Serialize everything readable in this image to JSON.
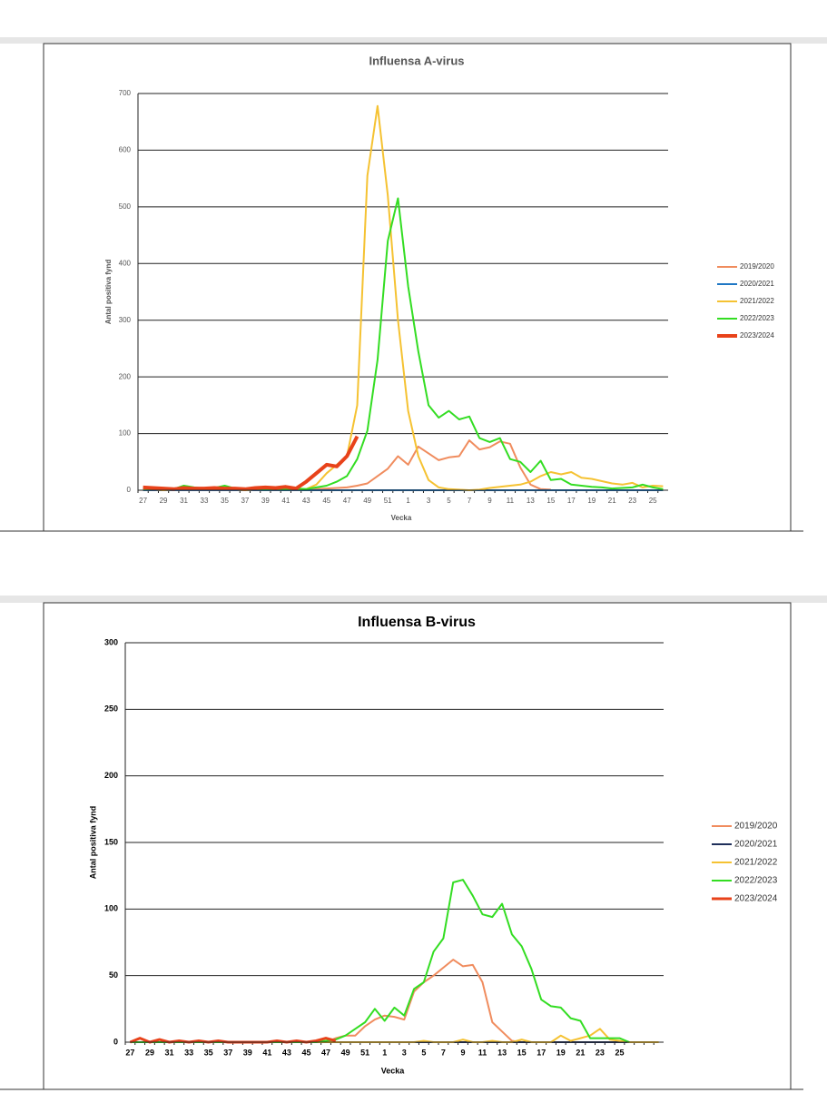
{
  "chart_data": [
    {
      "type": "line",
      "title": "Influensa A-virus",
      "ylabel": "Antal positiva fynd",
      "xlabel": "Vecka",
      "categories": [
        "27",
        null,
        "29",
        null,
        "31",
        null,
        "33",
        null,
        "35",
        null,
        "37",
        null,
        "39",
        null,
        "41",
        null,
        "43",
        null,
        "45",
        null,
        "47",
        null,
        "49",
        null,
        "51",
        null,
        "1",
        null,
        "3",
        null,
        "5",
        null,
        "7",
        null,
        "9",
        null,
        "11",
        null,
        "13",
        null,
        "15",
        null,
        "17",
        null,
        "19",
        null,
        "21",
        null,
        "23",
        null,
        "25",
        null
      ],
      "ylim": [
        0,
        700
      ],
      "yticks": [
        0,
        100,
        200,
        300,
        400,
        500,
        600,
        700
      ],
      "grid": true,
      "legend": "right",
      "series": [
        {
          "name": "2019/2020",
          "color": "#f08c5e",
          "linewidth": 2,
          "values": [
            0,
            0,
            0,
            0,
            0,
            0,
            0,
            0,
            0,
            0,
            0,
            0,
            0,
            0,
            0,
            0,
            1,
            2,
            3,
            4,
            5,
            8,
            12,
            25,
            38,
            60,
            45,
            77,
            65,
            53,
            58,
            60,
            88,
            72,
            76,
            86,
            82,
            40,
            10,
            2,
            1,
            null,
            null,
            null,
            null,
            null,
            null,
            null,
            null,
            null,
            null,
            null
          ]
        },
        {
          "name": "2020/2021",
          "color": "#1f77c4",
          "linewidth": 2,
          "values": [
            0,
            0,
            0,
            0,
            0,
            0,
            0,
            0,
            0,
            0,
            0,
            0,
            0,
            0,
            0,
            0,
            0,
            0,
            0,
            0,
            0,
            0,
            0,
            0,
            0,
            0,
            0,
            0,
            0,
            0,
            0,
            0,
            0,
            0,
            0,
            0,
            0,
            0,
            0,
            0,
            0,
            0,
            0,
            0,
            0,
            0,
            0,
            0,
            0,
            0,
            0,
            0
          ]
        },
        {
          "name": "2021/2022",
          "color": "#f5c232",
          "linewidth": 2,
          "values": [
            1,
            1,
            0,
            1,
            2,
            1,
            1,
            2,
            1,
            1,
            0,
            1,
            1,
            2,
            1,
            1,
            2,
            10,
            30,
            45,
            60,
            150,
            555,
            678,
            520,
            300,
            140,
            60,
            18,
            5,
            2,
            1,
            0,
            1,
            4,
            6,
            8,
            10,
            15,
            25,
            32,
            28,
            32,
            22,
            20,
            16,
            12,
            10,
            13,
            5,
            8,
            7
          ]
        },
        {
          "name": "2022/2023",
          "color": "#33dd22",
          "linewidth": 2,
          "values": [
            3,
            2,
            1,
            2,
            8,
            5,
            3,
            4,
            8,
            3,
            2,
            3,
            2,
            3,
            2,
            3,
            2,
            5,
            8,
            15,
            25,
            55,
            105,
            230,
            440,
            515,
            360,
            245,
            150,
            128,
            140,
            125,
            130,
            92,
            85,
            92,
            55,
            50,
            32,
            52,
            18,
            20,
            10,
            8,
            6,
            5,
            3,
            4,
            5,
            10,
            5,
            2
          ]
        },
        {
          "name": "2023/2024",
          "color": "#e8421a",
          "linewidth": 4,
          "values": [
            5,
            4,
            3,
            2,
            4,
            3,
            3,
            4,
            3,
            3,
            2,
            4,
            5,
            4,
            6,
            3,
            15,
            30,
            45,
            42,
            60,
            95,
            null,
            null,
            null,
            null,
            null,
            null,
            null,
            null,
            null,
            null,
            null,
            null,
            null,
            null,
            null,
            null,
            null,
            null,
            null,
            null,
            null,
            null,
            null,
            null,
            null,
            null,
            null,
            null,
            null,
            null
          ]
        }
      ]
    },
    {
      "type": "line",
      "title": "Influensa B-virus",
      "ylabel": "Antal positiva fynd",
      "xlabel": "Vecka",
      "categories": [
        "27",
        null,
        "29",
        null,
        "31",
        null,
        "33",
        null,
        "35",
        null,
        "37",
        null,
        "39",
        null,
        "41",
        null,
        "43",
        null,
        "45",
        null,
        "47",
        null,
        "49",
        null,
        "51",
        null,
        "1",
        null,
        "3",
        null,
        "5",
        null,
        "7",
        null,
        "9",
        null,
        "11",
        null,
        "13",
        null,
        "15",
        null,
        "17",
        null,
        "19",
        null,
        "21",
        null,
        "23",
        null,
        "25",
        null,
        null,
        null,
        null
      ],
      "ylim": [
        0,
        300
      ],
      "yticks": [
        0,
        50,
        100,
        150,
        200,
        250,
        300
      ],
      "grid": true,
      "legend": "right",
      "series": [
        {
          "name": "2019/2020",
          "color": "#f08c5e",
          "linewidth": 2,
          "values": [
            0,
            0,
            0,
            0,
            0,
            0,
            0,
            0,
            0,
            0,
            0,
            0,
            0,
            0,
            0,
            0,
            0,
            0,
            0,
            0,
            0,
            3,
            5,
            5,
            12,
            17,
            20,
            19,
            17,
            38,
            45,
            50,
            56,
            62,
            57,
            58,
            45,
            15,
            8,
            1,
            0,
            null,
            null,
            null,
            null,
            null,
            null,
            null,
            null,
            null,
            null,
            null,
            null,
            null,
            null
          ]
        },
        {
          "name": "2020/2021",
          "color": "#1f2f5a",
          "linewidth": 2,
          "values": [
            0,
            0,
            0,
            0,
            0,
            0,
            0,
            0,
            0,
            0,
            0,
            0,
            0,
            0,
            0,
            0,
            0,
            0,
            0,
            0,
            0,
            0,
            0,
            0,
            0,
            0,
            0,
            0,
            0,
            0,
            0,
            0,
            0,
            0,
            0,
            0,
            0,
            0,
            0,
            0,
            0,
            0,
            0,
            0,
            0,
            0,
            0,
            0,
            0,
            0,
            0,
            0,
            null,
            null,
            null
          ]
        },
        {
          "name": "2021/2022",
          "color": "#f5c232",
          "linewidth": 2,
          "values": [
            0,
            0,
            0,
            0,
            0,
            0,
            0,
            0,
            0,
            0,
            0,
            0,
            0,
            0,
            0,
            0,
            0,
            0,
            0,
            0,
            0,
            0,
            0,
            0,
            0,
            0,
            0,
            0,
            0,
            0,
            1,
            0,
            0,
            0,
            2,
            0,
            0,
            1,
            0,
            0,
            2,
            0,
            0,
            0,
            5,
            1,
            3,
            5,
            10,
            2,
            1,
            0,
            0,
            0,
            0
          ]
        },
        {
          "name": "2022/2023",
          "color": "#33dd22",
          "linewidth": 2,
          "values": [
            0,
            0,
            0,
            0,
            0,
            0,
            0,
            0,
            0,
            0,
            0,
            0,
            0,
            0,
            0,
            0,
            0,
            0,
            0,
            0,
            1,
            2,
            5,
            10,
            15,
            25,
            16,
            26,
            20,
            40,
            45,
            68,
            78,
            120,
            122,
            110,
            96,
            94,
            104,
            81,
            72,
            55,
            32,
            27,
            26,
            18,
            16,
            3,
            3,
            3,
            3,
            0,
            null,
            null,
            null
          ]
        },
        {
          "name": "2023/2024",
          "color": "#e8421a",
          "linewidth": 3,
          "values": [
            0,
            3,
            0,
            2,
            0,
            1,
            0,
            1,
            0,
            1,
            0,
            0,
            0,
            0,
            0,
            1,
            0,
            1,
            0,
            1,
            3,
            1,
            null,
            null,
            null,
            null,
            null,
            null,
            null,
            null,
            null,
            null,
            null,
            null,
            null,
            null,
            null,
            null,
            null,
            null,
            null,
            null,
            null,
            null,
            null,
            null,
            null,
            null,
            null,
            null,
            null,
            null,
            null,
            null,
            null
          ]
        }
      ]
    }
  ]
}
